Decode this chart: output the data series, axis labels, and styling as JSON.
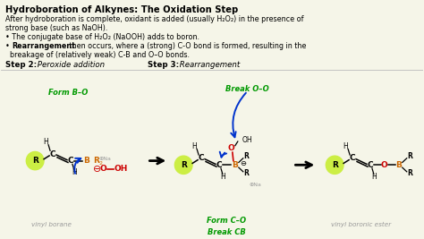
{
  "bg_color": "#f5f5e8",
  "text_color": "#000000",
  "green_color": "#009900",
  "red_color": "#cc0000",
  "orange_color": "#cc6600",
  "blue_color": "#0033cc",
  "gray_color": "#999999",
  "highlight_color": "#ccee44",
  "title": "Hydroboration of Alkynes: The Oxidation Step",
  "body1": "After hydroboration is complete, oxidant is added (usually H₂O₂) in the presence of",
  "body2": "strong base (such as NaOH).",
  "bullet1": "• The conjugate base of H₂O₂ (NaOOH) adds to boron.",
  "bullet2pre": "• ",
  "bullet2bold": "Rearrangement",
  "bullet2rest": " then occurs, where a (strong) C-O bond is formed, resulting in the",
  "bullet2cont": "  breakage of (relatively weak) C-B and O–O bonds.",
  "step2bold": "Step 2:",
  "step2italic": " Peroxide addition",
  "step3bold": "Step 3:",
  "step3italic": " Rearrangement",
  "form_bo": "Form B–O",
  "break_oo": "Break O–O",
  "form_co": "Form C–O",
  "break_cb": "Break CB",
  "label1": "vinyl borane",
  "label3": "vinyl boronic ester"
}
